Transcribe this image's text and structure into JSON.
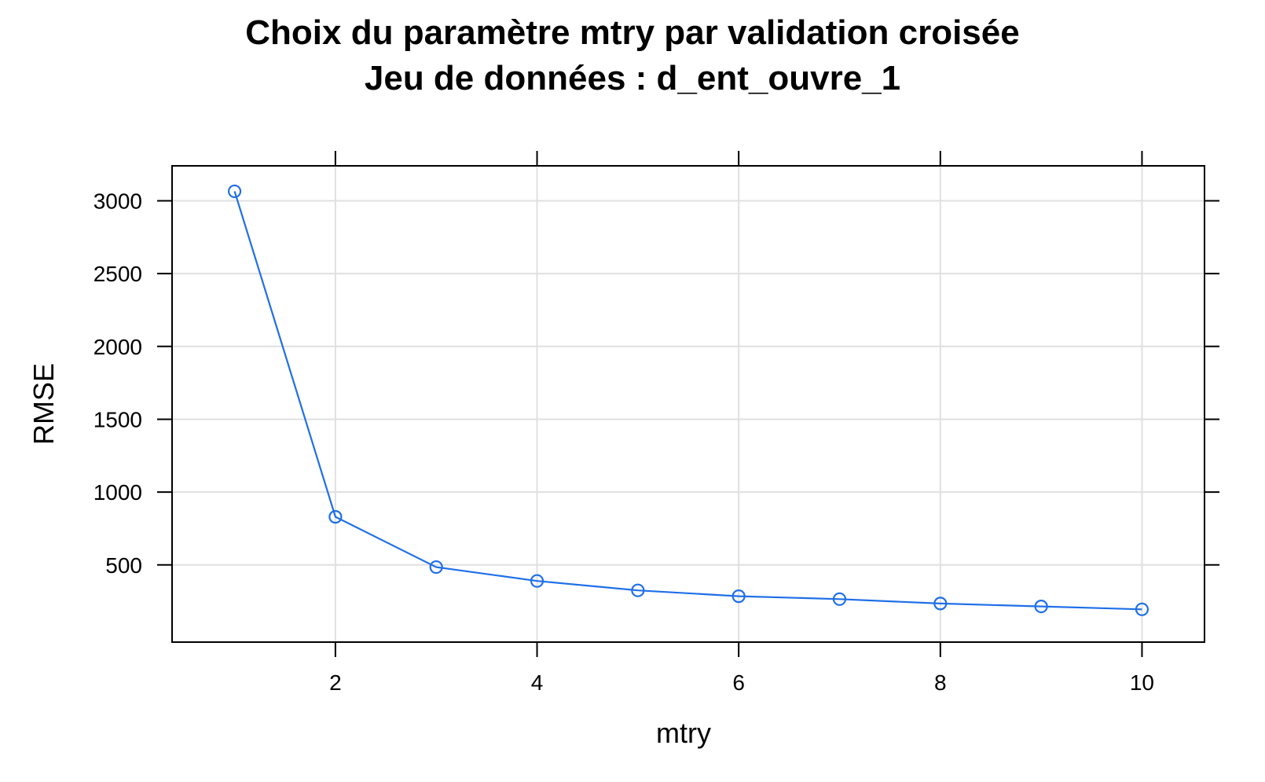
{
  "chart_data": {
    "type": "line",
    "title": "Choix du paramètre mtry par validation croisée",
    "subtitle": "Jeu de données : d_ent_ouvre_1",
    "xlabel": "mtry",
    "ylabel": "RMSE",
    "x": [
      1,
      2,
      3,
      4,
      5,
      6,
      7,
      8,
      9,
      10
    ],
    "series": [
      {
        "values": [
          3065,
          830,
          485,
          390,
          325,
          285,
          265,
          235,
          215,
          195
        ],
        "color": "#1f6fe8",
        "marker": "open-circle"
      }
    ],
    "x_ticks": [
      2,
      4,
      6,
      8,
      10
    ],
    "y_ticks": [
      500,
      1000,
      1500,
      2000,
      2500,
      3000
    ],
    "xlim": [
      0.38,
      10.62
    ],
    "ylim": [
      -30,
      3240
    ],
    "grid": true,
    "grid_color": "#e0e0e0",
    "axis_color": "#000000"
  }
}
